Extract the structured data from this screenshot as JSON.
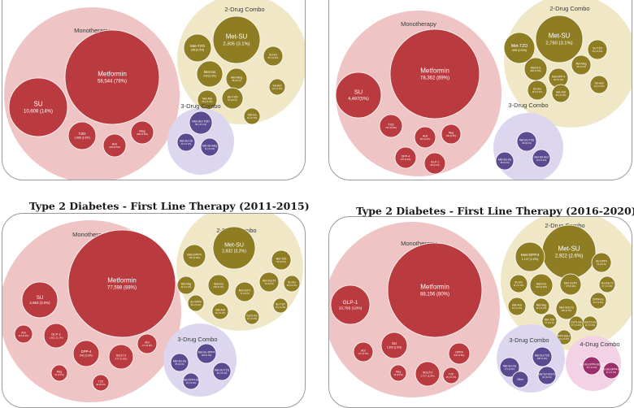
{
  "titles": {
    "panel3": "Type 2 Diabetes - First Line Therapy (2011-2015)",
    "panel4": "Type 2 Diabetes - First Line Therapy (2016-2020)"
  },
  "colors": {
    "mono_group": "#efc4c4",
    "mono_bubble": "#b93a3f",
    "combo2_group": "#efe7c6",
    "combo2_bubble": "#8f7d23",
    "combo3_group": "#dcd7ee",
    "combo3_bubble": "#5b4a8f",
    "combo4_group": "#f2d2e4",
    "combo4_bubble": "#9c2f6b"
  },
  "chart_data": [
    {
      "type": "bubble",
      "groups": [
        {
          "label": "Monotherapy",
          "kind": "mono",
          "items": [
            {
              "name": "Metformin",
              "value": "58,544 (78%)"
            },
            {
              "name": "SU",
              "value": "10,608 (14%)"
            },
            {
              "name": "TZD",
              "value": "1,868 (2.5%)"
            },
            {
              "name": "AGI",
              "value": "378 (0.5%)"
            },
            {
              "name": "Meg",
              "value": "309 (0.4%)"
            }
          ]
        },
        {
          "label": "2-Drug Combo",
          "kind": "combo2",
          "items": [
            {
              "name": "Met-SU",
              "value": "2,305 (3.1%)"
            },
            {
              "name": "Met-TZD",
              "value": "398 (0.5%)"
            },
            {
              "name": "Met-Ins",
              "value": "243 (0.3%)"
            },
            {
              "name": "Met-Meg",
              "value": "58 (0.1%)"
            },
            {
              "name": "SU-Ins",
              "value": "51 (<0.1%)"
            },
            {
              "name": "SU-TZD",
              "value": "81 (0.1%)"
            },
            {
              "name": "Met-AGI",
              "value": "50 (<0.1%)"
            },
            {
              "name": "TZD-Ins",
              "value": "11 (<0.1%)"
            },
            {
              "name": "SU-AGI",
              "value": "13 (<0.1%)"
            }
          ]
        },
        {
          "label": "3-Drug Combo",
          "kind": "combo3",
          "items": [
            {
              "name": "Met-SU-TZD",
              "value": "68 (<0.1%)"
            },
            {
              "name": "Met-SU-Ins",
              "value": "43 (<0.1%)"
            },
            {
              "name": "Met-SU-Meg",
              "value": "11 (<0.1%)"
            }
          ]
        }
      ]
    },
    {
      "type": "bubble",
      "groups": [
        {
          "label": "Monotherapy",
          "kind": "mono",
          "items": [
            {
              "name": "Metformin",
              "value": "78,362 (89%)"
            },
            {
              "name": "SU",
              "value": "4,497(5%)"
            },
            {
              "name": "TZD",
              "value": "741 (0.8%)"
            },
            {
              "name": "AGI",
              "value": "315 (0.4%)"
            },
            {
              "name": "Meg",
              "value": "169 (0.2%)"
            },
            {
              "name": "DPP-4",
              "value": "157 (0.2%)"
            },
            {
              "name": "GLP-1",
              "value": "98 (0.1%)"
            }
          ]
        },
        {
          "label": "2-Drug Combo",
          "kind": "combo2",
          "items": [
            {
              "name": "Met-SU",
              "value": "2,760 (3.1%)"
            },
            {
              "name": "Met-TZD",
              "value": "408 (0.5%)"
            },
            {
              "name": "SU-TZD",
              "value": "49 (<0.1%)"
            },
            {
              "name": "Met-Ins",
              "value": "400 (0.5%)"
            },
            {
              "name": "Met-DPP-4",
              "value": "110 (0.1%)"
            },
            {
              "name": "Met-Meg",
              "value": "55 (0.1%)"
            },
            {
              "name": "SU-Ins",
              "value": "39 (<0.1%)"
            },
            {
              "name": "Met-AGI",
              "value": "29 (<0.1%)"
            },
            {
              "name": "SU-AGI",
              "value": "13 (<0.1%)"
            }
          ]
        },
        {
          "label": "3-Drug Combo",
          "kind": "combo3",
          "items": [
            {
              "name": "Met-SU-TZD",
              "value": "89 (0.1%)"
            },
            {
              "name": "Met-SU-Ins",
              "value": "38 (0.1%)"
            },
            {
              "name": "Met-SU-AGI",
              "value": "19 (<0.1%)"
            }
          ]
        }
      ]
    },
    {
      "type": "bubble",
      "groups": [
        {
          "label": "Monotherapy",
          "kind": "mono",
          "items": [
            {
              "name": "Metformin",
              "value": "77,598 (88%)"
            },
            {
              "name": "SU",
              "value": "2,653 (3.0%)"
            },
            {
              "name": "GLP-1",
              "value": "1,821 (2.1%)"
            },
            {
              "name": "DPP-4",
              "value": "541 (0.6%)"
            },
            {
              "name": "SGLT2",
              "value": "477 (0.5%)"
            },
            {
              "name": "AGI",
              "value": "177 (0.2%)"
            },
            {
              "name": "AGI",
              "value": "213 (0.2%)"
            },
            {
              "name": "Meg",
              "value": "91 (0.1%)"
            },
            {
              "name": "TZD",
              "value": "88 (0.1%)"
            }
          ]
        },
        {
          "label": "2-Drug Combo",
          "kind": "combo2",
          "items": [
            {
              "name": "Met-SU",
              "value": "2,832 (3.2%)"
            },
            {
              "name": "Met-DPP4",
              "value": "740 (0.8%)"
            },
            {
              "name": "Met-TZD",
              "value": "55 (0.1%)"
            },
            {
              "name": "Met-Meg",
              "value": "42 (<0.1%)"
            },
            {
              "name": "Met-Ins",
              "value": "635 (0.7%)"
            },
            {
              "name": "Met-SGLT2",
              "value": "70 (0.1%)"
            },
            {
              "name": "SU-Ins",
              "value": "36 (<0.1%)"
            },
            {
              "name": "SU-DPP4",
              "value": "32 (<0.1%)"
            },
            {
              "name": "Met-GLP1",
              "value": "71 (0.1%)"
            },
            {
              "name": "Met-AGI",
              "value": "24 (<0.1%)"
            },
            {
              "name": "GLP1-Ins",
              "value": "12 (<0.1%)"
            },
            {
              "name": "SU-TZD",
              "value": "10 (<0.1%)"
            }
          ]
        },
        {
          "label": "3-Drug Combo",
          "kind": "combo3",
          "items": [
            {
              "name": "Met-SU-DPP4",
              "value": "118 (0.1%)"
            },
            {
              "name": "Met-SU-Ins",
              "value": "85 (0.1%)"
            },
            {
              "name": "Met-SU-TZD",
              "value": "40 (<0.1%)"
            },
            {
              "name": "Met-DPP4-Ins",
              "value": "24 (<0.1%)"
            }
          ]
        }
      ]
    },
    {
      "type": "bubble",
      "groups": [
        {
          "label": "Monotherapy",
          "kind": "mono",
          "items": [
            {
              "name": "Metformin",
              "value": "88,156 (80%)"
            },
            {
              "name": "GLP-1",
              "value": "10,785 (10%)"
            },
            {
              "name": "SU",
              "value": "1,993 (1.8%)"
            },
            {
              "name": "DPP4",
              "value": "542 (0.5%)"
            },
            {
              "name": "SGLT2",
              "value": "1,727 (1.6%)"
            },
            {
              "name": "AGI",
              "value": "127 (0.1%)"
            },
            {
              "name": "Meg",
              "value": "56 (0.1%)"
            },
            {
              "name": "TZD",
              "value": "48 (<0.1%)"
            }
          ]
        },
        {
          "label": "2-Drug Combo",
          "kind": "combo2",
          "items": [
            {
              "name": "Met-SU",
              "value": "2,922 (2.6%)"
            },
            {
              "name": "Met-DPP4",
              "value": "1,147 (1.0%)"
            },
            {
              "name": "SU-DPP4",
              "value": "50 (0.1%)"
            },
            {
              "name": "SU-Ins",
              "value": "41 (<0.1%)"
            },
            {
              "name": "Met-Ins",
              "value": "564 (0.5%)"
            },
            {
              "name": "Met-GLP1",
              "value": "178 (0.2%)"
            },
            {
              "name": "SU-SGLT2",
              "value": "27 (<0.1%)"
            },
            {
              "name": "Met-SGLT2",
              "value": "600 (0.5%)"
            },
            {
              "name": "DPP4-Ins",
              "value": "20 (<0.1%)"
            },
            {
              "name": "Met-AGI",
              "value": "33 (<0.1%)"
            },
            {
              "name": "Met-Meg",
              "value": "32 (<0.1%)"
            },
            {
              "name": "Met-TZD",
              "value": "57 (0.1%)"
            },
            {
              "name": "GLP1-Ins",
              "value": "27 (<0.1%)"
            },
            {
              "name": "SGLT2-DPP4",
              "value": "17 (<0.1%)"
            },
            {
              "name": "DPP4-SGLT2",
              "value": "13 (<0.1%)"
            },
            {
              "name": "SGLT2-Ins",
              "value": "11 (<0.1%)"
            }
          ]
        },
        {
          "label": "3-Drug Combo",
          "kind": "combo3",
          "items": [
            {
              "name": "Met-SU-TZD",
              "value": "208 (0.2%)"
            },
            {
              "name": "Met-SU-Ins",
              "value": "171 (0.2%)"
            },
            {
              "name": "Met-SU-SGLT2",
              "value": "82 (0.1%)"
            },
            {
              "name": "Other",
              "value": ""
            }
          ]
        },
        {
          "label": "4-Drug Combo",
          "kind": "combo4",
          "items": [
            {
              "name": "Met-SU-DPP4-SGLT2",
              "value": "25 (<0.1%)"
            },
            {
              "name": "Met-SU-DPP4-Ins",
              "value": "11 (<0.1%)"
            }
          ]
        }
      ]
    }
  ]
}
